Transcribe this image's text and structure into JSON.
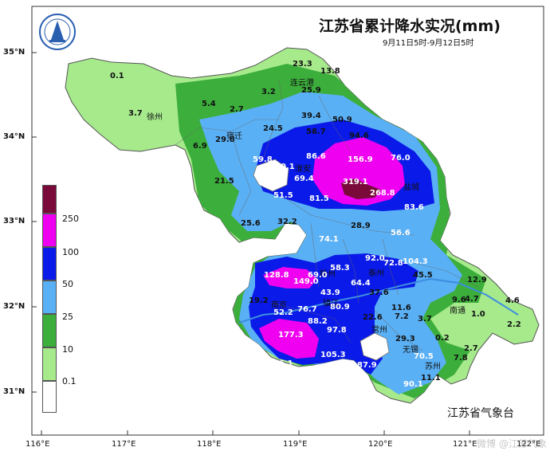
{
  "title": "江苏省累计降水实况(mm)",
  "subtitle": "9月11日5时-9月12日5时",
  "agency": "江苏省气象台",
  "watermark": "微博 @江苏气象",
  "axes": {
    "lon_labels": [
      "116°E",
      "117°E",
      "118°E",
      "119°E",
      "120°E",
      "121°E",
      "122°E"
    ],
    "lat_labels": [
      "35°N",
      "34°N",
      "33°N",
      "32°N",
      "31°N"
    ]
  },
  "legend": {
    "thresholds": [
      "250",
      "100",
      "50",
      "25",
      "10",
      "0.1"
    ],
    "colors": [
      "#7a0a3a",
      "#f000f0",
      "#0a1ae8",
      "#5ab0f5",
      "#3cae3c",
      "#a6ea8c",
      "#ffffff"
    ]
  },
  "cities": [
    {
      "name": "徐州"
    },
    {
      "name": "连云港"
    },
    {
      "name": "宿迁"
    },
    {
      "name": "淮安"
    },
    {
      "name": "盐城"
    },
    {
      "name": "扬州"
    },
    {
      "name": "泰州"
    },
    {
      "name": "南京"
    },
    {
      "name": "镇江"
    },
    {
      "name": "常州"
    },
    {
      "name": "无锡"
    },
    {
      "name": "苏州"
    },
    {
      "name": "南通"
    }
  ],
  "station_values": [
    "0.1",
    "3.7",
    "5.4",
    "2.7",
    "3.2",
    "23.3",
    "13.8",
    "25.9",
    "6.9",
    "29.8",
    "24.5",
    "39.4",
    "58.7",
    "50.9",
    "94.6",
    "76.0",
    "59.8",
    "70.1",
    "86.6",
    "156.9",
    "319.1",
    "268.8",
    "21.5",
    "69.4",
    "51.5",
    "81.5",
    "83.6",
    "25.6",
    "32.2",
    "28.9",
    "74.1",
    "56.6",
    "92.0",
    "72.8",
    "104.3",
    "128.8",
    "149.0",
    "69.0",
    "58.3",
    "64.4",
    "45.5",
    "12.9",
    "19.2",
    "52.2",
    "76.7",
    "43.9",
    "37.6",
    "80.9",
    "9.6",
    "4.7",
    "4.6",
    "11.6",
    "7.2",
    "3.7",
    "1.0",
    "88.2",
    "22.6",
    "2.2",
    "177.3",
    "97.8",
    "29.3",
    "0.2",
    "105.3",
    "2.7",
    "7.8",
    "70.5",
    "76.1",
    "87.9",
    "11.1",
    "90.1"
  ]
}
